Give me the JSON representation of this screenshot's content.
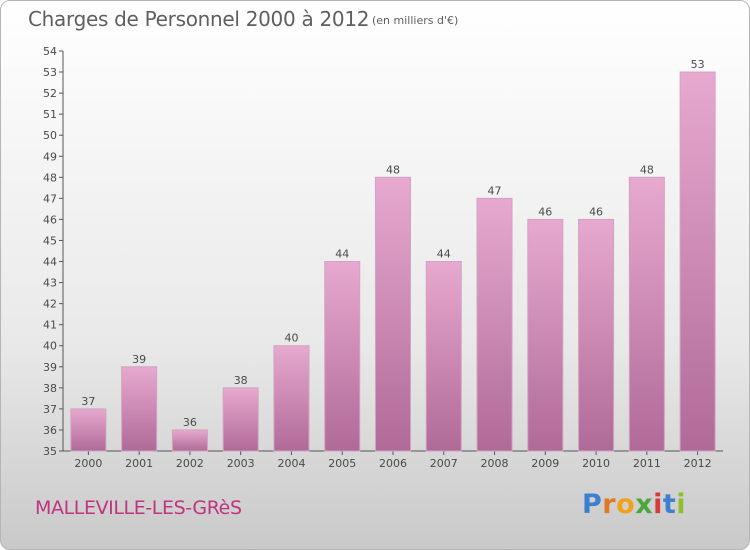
{
  "header": {
    "title": "Charges de Personnel 2000 à 2012",
    "subtitle": "(en milliers d'€)"
  },
  "footer": {
    "town": "MALLEVILLE-LES-GRèS",
    "logo_letters": [
      "P",
      "r",
      "o",
      "x",
      "i",
      "t",
      "i"
    ]
  },
  "colors": {
    "bar_top": "#e7a9cf",
    "bar_bottom": "#b06a98",
    "title": "#5f5f5f",
    "town": "#c0347f"
  },
  "chart_data": {
    "type": "bar",
    "title": "Charges de Personnel 2000 à 2012",
    "subtitle": "(en milliers d'€)",
    "categories": [
      "2000",
      "2001",
      "2002",
      "2003",
      "2004",
      "2005",
      "2006",
      "2007",
      "2008",
      "2009",
      "2010",
      "2011",
      "2012"
    ],
    "values": [
      37,
      39,
      36,
      38,
      40,
      44,
      48,
      44,
      47,
      46,
      46,
      48,
      53
    ],
    "ylim": [
      35,
      54
    ],
    "yticks": [
      35,
      36,
      37,
      38,
      39,
      40,
      41,
      42,
      43,
      44,
      45,
      46,
      47,
      48,
      49,
      50,
      51,
      52,
      53,
      54
    ],
    "xlabel": "",
    "ylabel": "",
    "grid": false,
    "legend": "none"
  }
}
